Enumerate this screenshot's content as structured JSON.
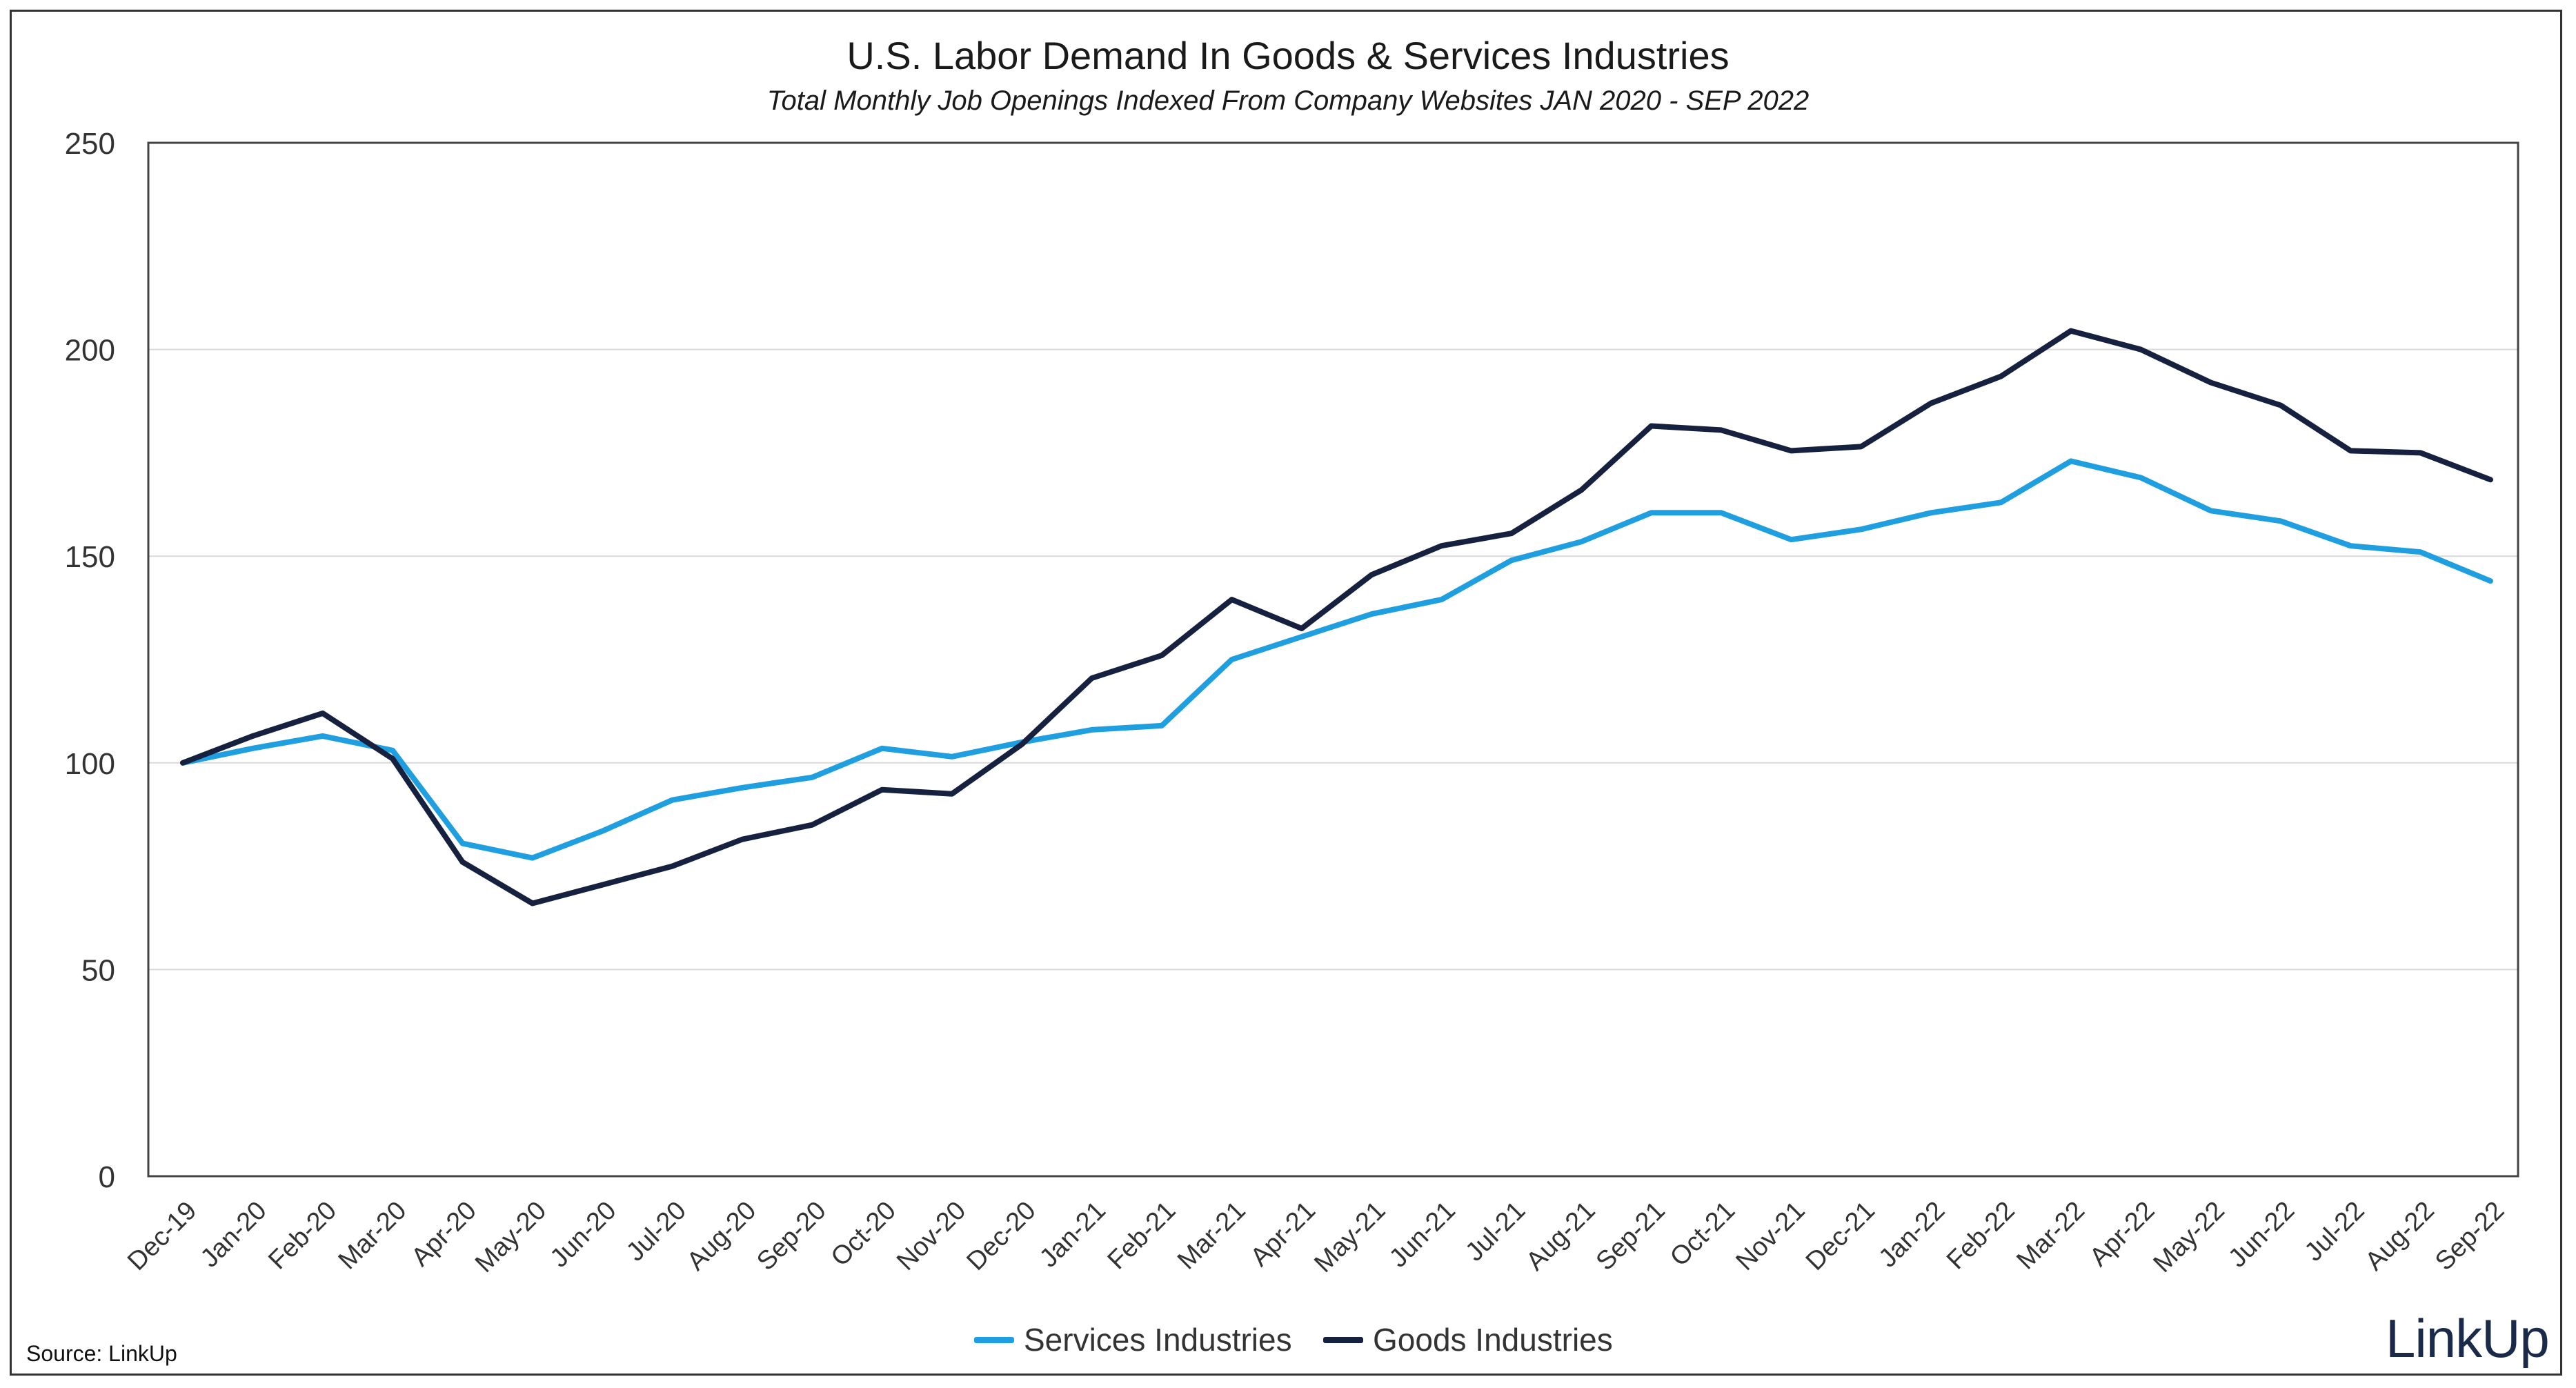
{
  "chart_data": {
    "type": "line",
    "title": "U.S. Labor Demand In Goods & Services Industries",
    "subtitle": "Total Monthly Job Openings Indexed From Company Websites JAN 2020 - SEP 2022",
    "categories": [
      "Dec-19",
      "Jan-20",
      "Feb-20",
      "Mar-20",
      "Apr-20",
      "May-20",
      "Jun-20",
      "Jul-20",
      "Aug-20",
      "Sep-20",
      "Oct-20",
      "Nov-20",
      "Dec-20",
      "Jan-21",
      "Feb-21",
      "Mar-21",
      "Apr-21",
      "May-21",
      "Jun-21",
      "Jul-21",
      "Aug-21",
      "Sep-21",
      "Oct-21",
      "Nov-21",
      "Dec-21",
      "Jan-22",
      "Feb-22",
      "Mar-22",
      "Apr-22",
      "May-22",
      "Jun-22",
      "Jul-22",
      "Aug-22",
      "Sep-22"
    ],
    "series": [
      {
        "name": "Services Industries",
        "color": "#1f9fe0",
        "values": [
          100,
          103.5,
          106.5,
          103,
          80.5,
          77,
          83.5,
          91,
          94,
          96.5,
          103.5,
          101.5,
          105,
          108,
          109,
          125,
          130.5,
          136,
          139.5,
          149,
          153.5,
          160.5,
          160.5,
          154,
          156.5,
          160.5,
          163,
          173,
          169,
          161,
          158.5,
          152.5,
          151,
          144
        ]
      },
      {
        "name": "Goods Industries",
        "color": "#16213f",
        "values": [
          100,
          106.5,
          112,
          101,
          76,
          66,
          70.5,
          75,
          81.5,
          85,
          93.5,
          92.5,
          104.5,
          120.5,
          126,
          139.5,
          132.5,
          145.5,
          152.5,
          155.5,
          166,
          181.5,
          180.5,
          175.5,
          176.5,
          187,
          193.5,
          204.5,
          200,
          192,
          186.5,
          175.5,
          175,
          168.5
        ]
      }
    ],
    "yticks": [
      "0",
      "50",
      "100",
      "150",
      "200",
      "250"
    ],
    "ylim": [
      0,
      250
    ],
    "grid": true,
    "legend_position": "bottom-center",
    "xlabel": "",
    "ylabel": ""
  },
  "footer": {
    "source": "Source: LinkUp",
    "logo_text": "LinkUp"
  }
}
